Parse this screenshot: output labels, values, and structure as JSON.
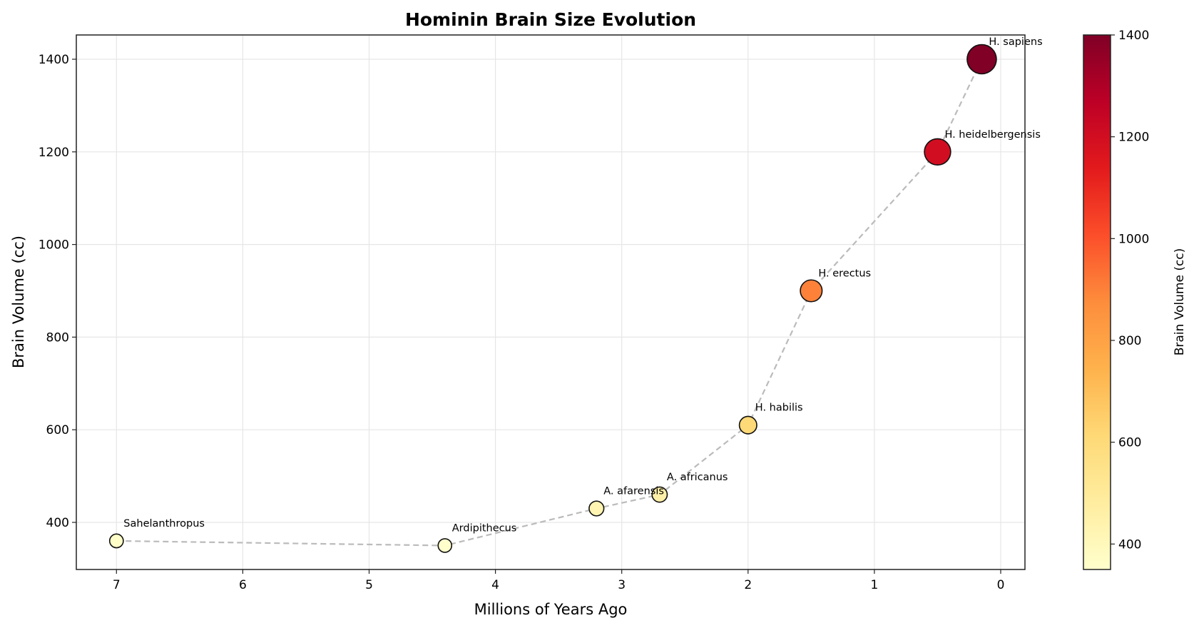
{
  "chart_data": {
    "type": "scatter",
    "title": "Hominin Brain Size Evolution",
    "xlabel": "Millions of Years Ago",
    "ylabel": "Brain Volume (cc)",
    "xlim": [
      7.34,
      -0.2
    ],
    "ylim": [
      295,
      1455
    ],
    "x_inverted": true,
    "grid": true,
    "xticks": [
      7,
      6,
      5,
      4,
      3,
      2,
      1,
      0
    ],
    "yticks": [
      400,
      600,
      800,
      1000,
      1200,
      1400
    ],
    "points": [
      {
        "name": "Sahelanthropus",
        "x": 7.0,
        "y": 360
      },
      {
        "name": "Ardipithecus",
        "x": 4.4,
        "y": 350
      },
      {
        "name": "A. afarensis",
        "x": 3.2,
        "y": 430
      },
      {
        "name": "A. africanus",
        "x": 2.7,
        "y": 460
      },
      {
        "name": "H. habilis",
        "x": 2.0,
        "y": 610
      },
      {
        "name": "H. erectus",
        "x": 1.5,
        "y": 900
      },
      {
        "name": "H. heidelbergensis",
        "x": 0.5,
        "y": 1200
      },
      {
        "name": "H. sapiens",
        "x": 0.15,
        "y": 1400
      }
    ],
    "connector": {
      "style": "dashed",
      "color": "#bbbbbb"
    },
    "marker_size_encodes": "brain volume",
    "marker_color_encodes": "brain volume",
    "colorbar": {
      "label": "Brain Volume (cc)",
      "colormap": "YlOrRd",
      "range": [
        350,
        1400
      ],
      "ticks": [
        400,
        600,
        800,
        1000,
        1200,
        1400
      ]
    }
  }
}
